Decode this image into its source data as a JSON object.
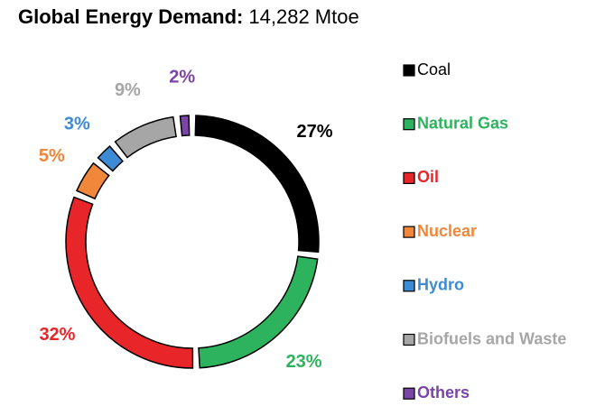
{
  "chart_data": {
    "type": "donut",
    "title": "Global Energy Demand:",
    "subtitle": "14,282 Mtoe",
    "categories": [
      "Coal",
      "Natural Gas",
      "Oil",
      "Nuclear",
      "Hydro",
      "Biofuels and Waste",
      "Others"
    ],
    "values": [
      27,
      23,
      32,
      5,
      3,
      9,
      2
    ],
    "value_labels": [
      "27%",
      "23%",
      "32%",
      "5%",
      "3%",
      "9%",
      "2%"
    ],
    "colors": [
      "#000000",
      "#2db35d",
      "#e8262a",
      "#f0873a",
      "#3d8bd4",
      "#a6a6a6",
      "#7b45a8"
    ],
    "label_colors": [
      "#000000",
      "#2db35d",
      "#e8262a",
      "#f0873a",
      "#3d8bd4",
      "#a6a6a6",
      "#7b45a8"
    ],
    "legend": "right"
  }
}
